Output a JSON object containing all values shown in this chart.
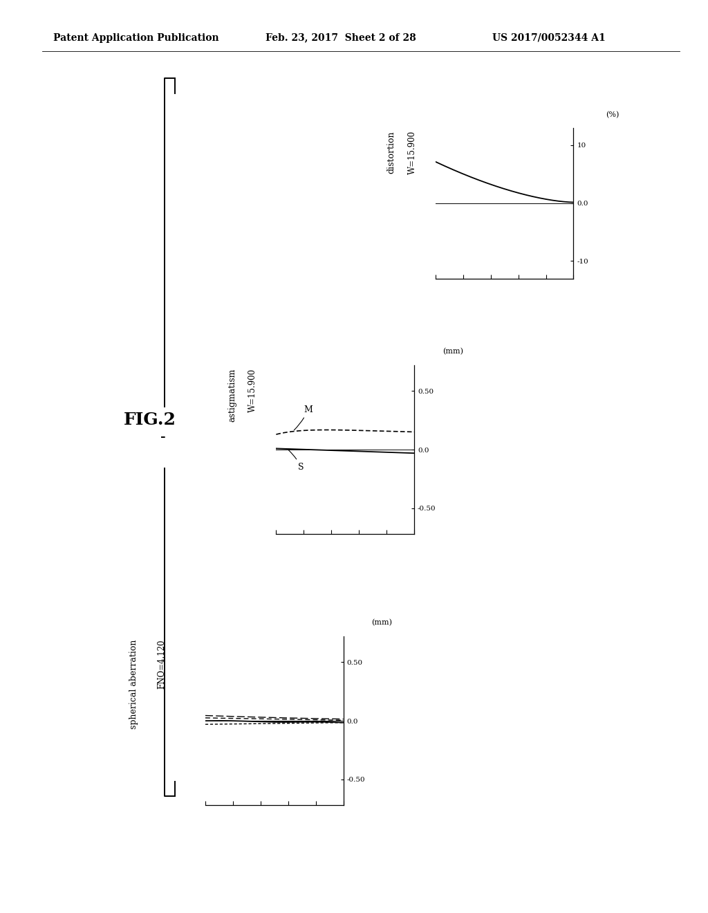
{
  "header_left": "Patent Application Publication",
  "header_mid": "Feb. 23, 2017  Sheet 2 of 28",
  "header_right": "US 2017/0052344 A1",
  "fig_label": "FIG.2",
  "chart1_title": "distortion",
  "chart1_subtitle": "W=15.900",
  "chart1_ylabel": "(%)",
  "chart1_ytick_labels": [
    "10",
    "0.0",
    "-10"
  ],
  "chart1_ytick_vals": [
    10,
    0.0,
    -10
  ],
  "chart1_ylim": [
    -13,
    13
  ],
  "chart2_title": "astigmatism",
  "chart2_subtitle": "W=15.900",
  "chart2_ylabel": "(mm)",
  "chart2_ytick_labels": [
    "0.50",
    "0.0",
    "-0.50"
  ],
  "chart2_ytick_vals": [
    0.5,
    0.0,
    -0.5
  ],
  "chart2_ylim": [
    -0.72,
    0.72
  ],
  "chart3_title": "spherical aberration",
  "chart3_subtitle": "FNO=4.120",
  "chart3_ylabel": "(mm)",
  "chart3_ytick_labels": [
    "0.50",
    "0.0",
    "-0.50"
  ],
  "chart3_ytick_vals": [
    0.5,
    0.0,
    -0.5
  ],
  "chart3_ylim": [
    -0.72,
    0.72
  ],
  "background_color": "#ffffff",
  "line_color": "#000000"
}
